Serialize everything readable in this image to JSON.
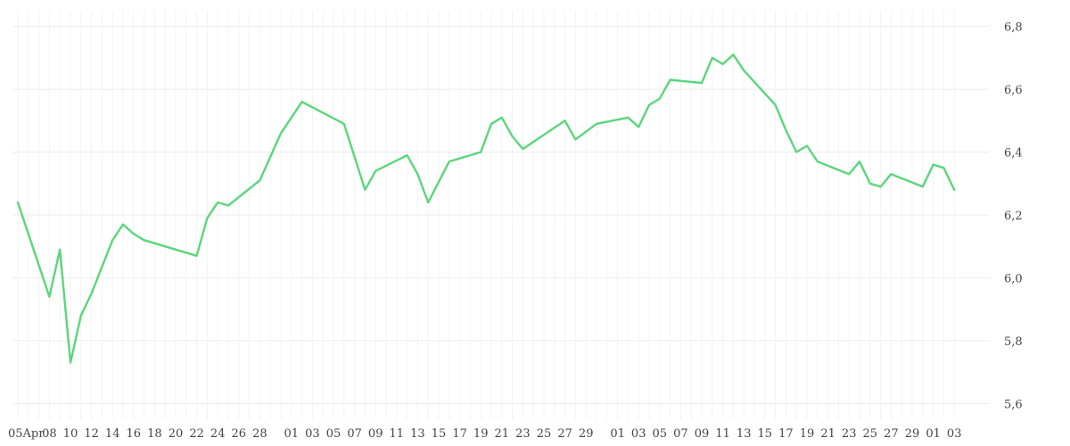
{
  "chart_data": {
    "type": "line",
    "title": "",
    "xlabel": "",
    "ylabel": "",
    "grid": true,
    "y_axis_side": "right",
    "ylim": [
      5.55,
      6.85
    ],
    "yticks": [
      "6,8",
      "6,6",
      "6,4",
      "6,2",
      "6,0",
      "5,8",
      "5,6"
    ],
    "ytick_values": [
      6.8,
      6.6,
      6.4,
      6.2,
      6.0,
      5.8,
      5.6
    ],
    "xticks": [
      "05Apr",
      "08",
      "10",
      "12",
      "14",
      "16",
      "18",
      "20",
      "22",
      "24",
      "26",
      "28",
      "01",
      "03",
      "05",
      "07",
      "09",
      "11",
      "13",
      "15",
      "17",
      "19",
      "21",
      "23",
      "25",
      "27",
      "29",
      "01",
      "03",
      "05",
      "07",
      "09",
      "11",
      "13",
      "15",
      "17",
      "19",
      "21",
      "23",
      "25",
      "27",
      "29",
      "01",
      "03"
    ],
    "xtick_dates": [
      "04-05",
      "04-08",
      "04-10",
      "04-12",
      "04-14",
      "04-16",
      "04-18",
      "04-20",
      "04-22",
      "04-24",
      "04-26",
      "04-28",
      "05-01",
      "05-03",
      "05-05",
      "05-07",
      "05-09",
      "05-11",
      "05-13",
      "05-15",
      "05-17",
      "05-19",
      "05-21",
      "05-23",
      "05-25",
      "05-27",
      "05-29",
      "06-01",
      "06-03",
      "06-05",
      "06-07",
      "06-09",
      "06-11",
      "06-13",
      "06-15",
      "06-17",
      "06-19",
      "06-21",
      "06-23",
      "06-25",
      "06-27",
      "06-29",
      "07-01",
      "07-03"
    ],
    "line_color": "#5bd67c",
    "series": [
      {
        "x": [
          "04-05",
          "04-08",
          "04-09",
          "04-10",
          "04-11",
          "04-12",
          "04-14",
          "04-15",
          "04-16",
          "04-17",
          "04-22",
          "04-23",
          "04-24",
          "04-25",
          "04-28",
          "04-30",
          "05-02",
          "05-06",
          "05-08",
          "05-09",
          "05-12",
          "05-13",
          "05-14",
          "05-16",
          "05-19",
          "05-20",
          "05-21",
          "05-22",
          "05-23",
          "05-27",
          "05-28",
          "05-30",
          "06-02",
          "06-03",
          "06-04",
          "06-05",
          "06-06",
          "06-09",
          "06-10",
          "06-11",
          "06-12",
          "06-13",
          "06-16",
          "06-17",
          "06-18",
          "06-19",
          "06-20",
          "06-23",
          "06-24",
          "06-25",
          "06-26",
          "06-27",
          "06-30",
          "07-01",
          "07-02",
          "07-03"
        ],
        "values": [
          6.24,
          5.94,
          6.09,
          5.73,
          5.88,
          5.95,
          6.12,
          6.17,
          6.14,
          6.12,
          6.07,
          6.19,
          6.24,
          6.23,
          6.31,
          6.46,
          6.56,
          6.49,
          6.28,
          6.34,
          6.39,
          6.33,
          6.24,
          6.37,
          6.4,
          6.49,
          6.51,
          6.45,
          6.41,
          6.5,
          6.44,
          6.49,
          6.51,
          6.48,
          6.55,
          6.57,
          6.63,
          6.62,
          6.7,
          6.68,
          6.71,
          6.66,
          6.55,
          6.47,
          6.4,
          6.42,
          6.37,
          6.33,
          6.37,
          6.3,
          6.29,
          6.33,
          6.29,
          6.36,
          6.35,
          6.28
        ]
      }
    ]
  }
}
